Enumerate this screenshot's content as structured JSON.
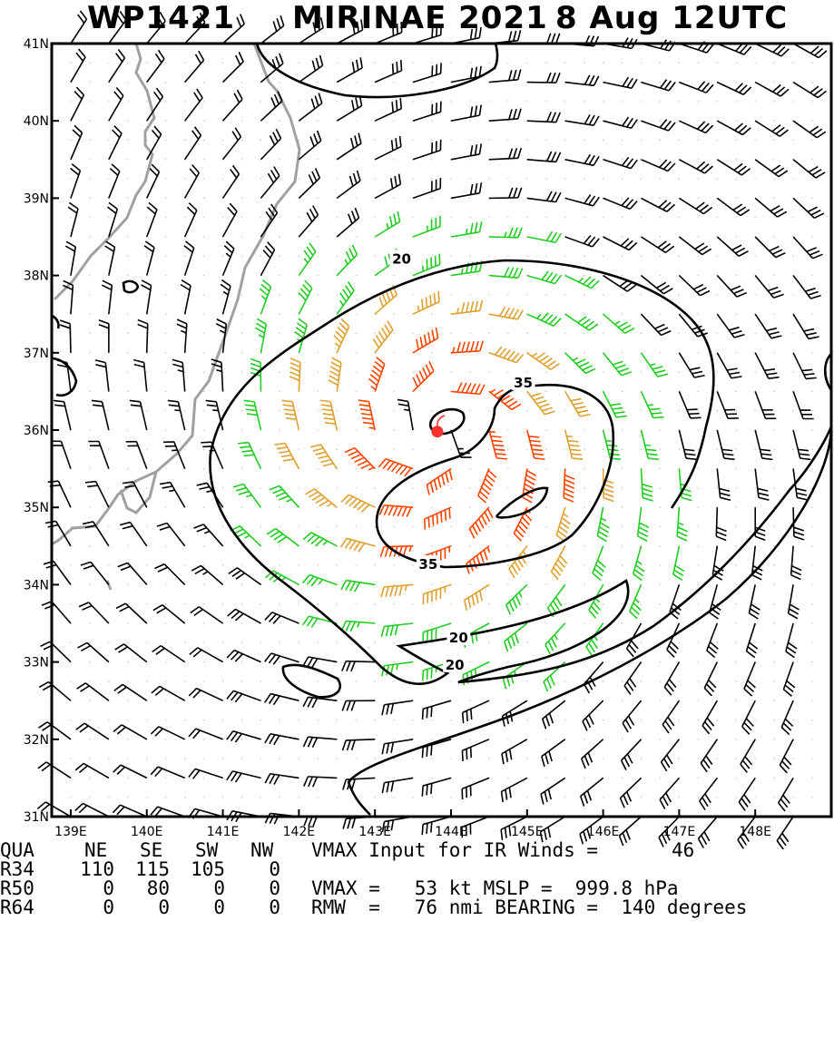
{
  "chart_data": {
    "type": "wind_barb_map",
    "storm_id": "WP1421",
    "storm_name": "MIRINAE 2021",
    "date": "8 Aug 12UTC",
    "lat_range": [
      31,
      41
    ],
    "lon_range": [
      138.75,
      149
    ],
    "lat_ticks": [
      "31N",
      "32N",
      "33N",
      "34N",
      "35N",
      "36N",
      "37N",
      "38N",
      "39N",
      "40N",
      "41N"
    ],
    "lon_ticks": [
      "139E",
      "140E",
      "141E",
      "142E",
      "143E",
      "144E",
      "145E",
      "146E",
      "147E",
      "148E"
    ],
    "center": {
      "lat": 35.98,
      "lon": 143.82
    },
    "contour_labels": [
      {
        "text": "20",
        "lat": 38.2,
        "lon": 143.35
      },
      {
        "text": "35",
        "lat": 36.6,
        "lon": 144.95
      },
      {
        "text": "35",
        "lat": 34.25,
        "lon": 143.7
      },
      {
        "text": "20",
        "lat": 33.3,
        "lon": 144.1
      },
      {
        "text": "20",
        "lat": 32.95,
        "lon": 144.05
      }
    ],
    "legend_colors": {
      "below_34kt": "#000000",
      "34_to_49kt": "#22cc22",
      "50_to_63kt": "#e0a030",
      "64kt_plus": "#ff4400",
      "center": "#ff3030",
      "coast": "#a0a0a0"
    }
  },
  "info": {
    "header": {
      "qua": "QUA",
      "ne": "NE",
      "se": "SE",
      "sw": "SW",
      "nw": "NW",
      "vmax_label": "VMAX Input for IR Winds =",
      "vmax_input": "46"
    },
    "r34": {
      "label": "R34",
      "ne": "110",
      "se": "115",
      "sw": "105",
      "nw": "0"
    },
    "r50": {
      "label": "R50",
      "ne": "0",
      "se": "80",
      "sw": "0",
      "nw": "0",
      "text": "VMAX =   53 kt MSLP =  999.8 hPa"
    },
    "r64": {
      "label": "R64",
      "ne": "0",
      "se": "0",
      "sw": "0",
      "nw": "0",
      "text": "RMW  =   76 nmi BEARING =  140 degrees"
    }
  }
}
